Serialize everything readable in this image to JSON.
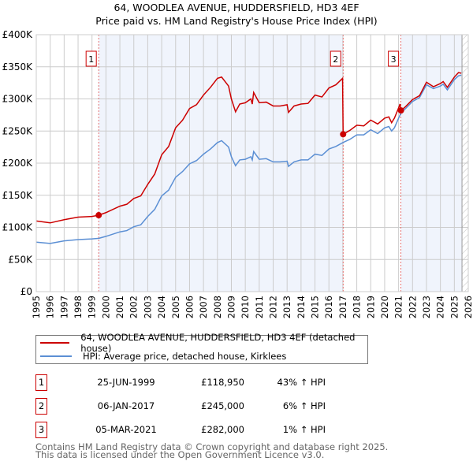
{
  "chart_data": {
    "type": "line",
    "title": "64, WOODLEA AVENUE, HUDDERSFIELD, HD3 4EF",
    "subtitle": "Price paid vs. HM Land Registry's House Price Index (HPI)",
    "xlim": [
      1995,
      2026
    ],
    "ylim": [
      0,
      400000
    ],
    "x_ticks": [
      "1995",
      "1996",
      "1997",
      "1998",
      "1999",
      "2000",
      "2001",
      "2002",
      "2003",
      "2004",
      "2005",
      "2006",
      "2007",
      "2008",
      "2009",
      "2010",
      "2011",
      "2012",
      "2013",
      "2014",
      "2015",
      "2016",
      "2017",
      "2018",
      "2019",
      "2020",
      "2021",
      "2022",
      "2023",
      "2024",
      "2025",
      "2026"
    ],
    "y_ticks": [
      {
        "v": 0,
        "label": "£0"
      },
      {
        "v": 50000,
        "label": "£50K"
      },
      {
        "v": 100000,
        "label": "£100K"
      },
      {
        "v": 150000,
        "label": "£150K"
      },
      {
        "v": 200000,
        "label": "£200K"
      },
      {
        "v": 250000,
        "label": "£250K"
      },
      {
        "v": 300000,
        "label": "£300K"
      },
      {
        "v": 350000,
        "label": "£350K"
      },
      {
        "v": 400000,
        "label": "£400K"
      }
    ],
    "grid": true,
    "shaded_ranges": [
      [
        1999.48,
        2017.02
      ],
      [
        2021.17,
        2025.55
      ]
    ],
    "hatched_after": 2025.55,
    "series": [
      {
        "name": "64, WOODLEA AVENUE, HUDDERSFIELD, HD3 4EF (detached house)",
        "color": "#cc0000",
        "x": [
          1995,
          1996,
          1997,
          1998,
          1999,
          1999.48,
          2000,
          2001,
          2001.5,
          2002,
          2002.5,
          2003,
          2003.5,
          2004,
          2004.5,
          2005,
          2005.5,
          2006,
          2006.5,
          2007,
          2007.5,
          2008,
          2008.3,
          2008.8,
          2009,
          2009.3,
          2009.6,
          2010,
          2010.4,
          2010.5,
          2010.6,
          2011,
          2011.5,
          2012,
          2012.5,
          2013,
          2013.1,
          2013.5,
          2014,
          2014.5,
          2015,
          2015.5,
          2016,
          2016.5,
          2016.98,
          2017.02,
          2017.5,
          2018,
          2018.5,
          2019,
          2019.5,
          2020,
          2020.3,
          2020.5,
          2020.7,
          2021,
          2021.1,
          2021.17,
          2021.5,
          2022,
          2022.5,
          2023,
          2023.5,
          2024,
          2024.2,
          2024.5,
          2025,
          2025.3,
          2025.5
        ],
        "y": [
          110000,
          107000,
          112000,
          116000,
          117000,
          118950,
          123000,
          133000,
          136000,
          145000,
          149000,
          167000,
          183000,
          213000,
          226000,
          255000,
          267000,
          285000,
          291000,
          306000,
          318000,
          332000,
          334000,
          320000,
          300000,
          280000,
          292000,
          294000,
          300000,
          292000,
          310000,
          294000,
          295000,
          289000,
          289000,
          291000,
          279000,
          289000,
          292000,
          293000,
          306000,
          303000,
          317000,
          322000,
          332000,
          245000,
          251000,
          259000,
          258000,
          267000,
          261000,
          270000,
          272000,
          263000,
          270000,
          286000,
          292000,
          282000,
          288000,
          299000,
          305000,
          326000,
          319000,
          324000,
          327000,
          318000,
          334000,
          341000,
          340000
        ]
      },
      {
        "name": "HPI: Average price, detached house, Kirklees",
        "color": "#5b8fd4",
        "x": [
          1995,
          1996,
          1997,
          1998,
          1999,
          1999.5,
          2000,
          2001,
          2001.5,
          2002,
          2002.5,
          2003,
          2003.5,
          2004,
          2004.5,
          2005,
          2005.5,
          2006,
          2006.5,
          2007,
          2007.5,
          2008,
          2008.3,
          2008.8,
          2009,
          2009.3,
          2009.6,
          2010,
          2010.4,
          2010.5,
          2010.6,
          2011,
          2011.5,
          2012,
          2012.5,
          2013,
          2013.1,
          2013.5,
          2014,
          2014.5,
          2015,
          2015.5,
          2016,
          2016.5,
          2017,
          2017.5,
          2018,
          2018.5,
          2019,
          2019.5,
          2020,
          2020.3,
          2020.5,
          2020.7,
          2021,
          2021.2,
          2021.5,
          2022,
          2022.5,
          2023,
          2023.5,
          2024,
          2024.2,
          2024.5,
          2025,
          2025.3,
          2025.5
        ],
        "y": [
          77000,
          75000,
          79000,
          81000,
          82000,
          83000,
          86000,
          93000,
          95000,
          101000,
          104000,
          117000,
          128000,
          149000,
          158000,
          178000,
          187000,
          199000,
          204000,
          214000,
          222000,
          232000,
          235000,
          225000,
          210000,
          196000,
          205000,
          206000,
          210000,
          205000,
          218000,
          206000,
          207000,
          202000,
          202000,
          203000,
          195000,
          202000,
          205000,
          205000,
          214000,
          212000,
          222000,
          226000,
          232000,
          237000,
          244000,
          244000,
          252000,
          246000,
          255000,
          257000,
          250000,
          255000,
          270000,
          279000,
          285000,
          296000,
          302000,
          322000,
          316000,
          320000,
          323000,
          314000,
          330000,
          336000,
          337000
        ]
      }
    ],
    "sales": [
      {
        "id": "1",
        "x": 1999.48,
        "y": 118950,
        "date": "25-JUN-1999",
        "price": "£118,950",
        "hpi": "43% ↑ HPI"
      },
      {
        "id": "2",
        "x": 2017.02,
        "y": 245000,
        "date": "06-JAN-2017",
        "price": "£245,000",
        "hpi": "6% ↑ HPI"
      },
      {
        "id": "3",
        "x": 2021.17,
        "y": 282000,
        "date": "05-MAR-2021",
        "price": "£282,000",
        "hpi": "1% ↑ HPI"
      }
    ]
  },
  "footer": {
    "line1": "Contains HM Land Registry data © Crown copyright and database right 2025.",
    "line2": "This data is licensed under the Open Government Licence v3.0."
  }
}
